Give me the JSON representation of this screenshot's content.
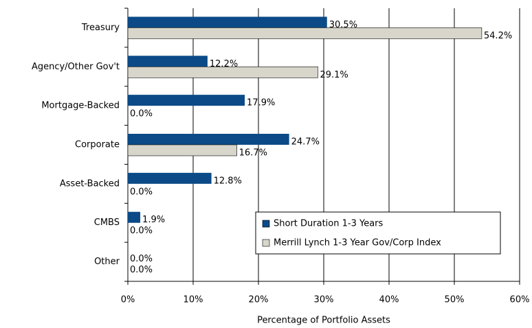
{
  "chart_data": {
    "type": "hbar",
    "x_label": "Percentage of Portfolio Assets",
    "categories": [
      "Treasury",
      "Agency/Other Gov't",
      "Mortgage-Backed",
      "Corporate",
      "Asset-Backed",
      "CMBS",
      "Other"
    ],
    "series": [
      {
        "name": "Short Duration 1-3 Years",
        "color": "#0b4a87",
        "values": [
          30.5,
          12.2,
          17.9,
          24.7,
          12.8,
          1.9,
          0.0
        ],
        "value_labels": [
          "30.5%",
          "12.2%",
          "17.9%",
          "24.7%",
          "12.8%",
          "1.9%",
          "0.0%"
        ]
      },
      {
        "name": "Merrill Lynch 1-3 Year Gov/Corp Index",
        "color": "#d8d5cb",
        "values": [
          54.2,
          29.1,
          0.0,
          16.7,
          0.0,
          0.0,
          0.0
        ],
        "value_labels": [
          "54.2%",
          "29.1%",
          "0.0%",
          "16.7%",
          "0.0%",
          "0.0%",
          "0.0%"
        ]
      }
    ],
    "xlim": [
      0,
      60
    ],
    "xticks": [
      {
        "value": 0,
        "label": "0%"
      },
      {
        "value": 10,
        "label": "10%"
      },
      {
        "value": 20,
        "label": "20%"
      },
      {
        "value": 30,
        "label": "30%"
      },
      {
        "value": 40,
        "label": "40%"
      },
      {
        "value": 50,
        "label": "50%"
      },
      {
        "value": 60,
        "label": "60%"
      }
    ],
    "grid": true,
    "legend": "lower right"
  }
}
